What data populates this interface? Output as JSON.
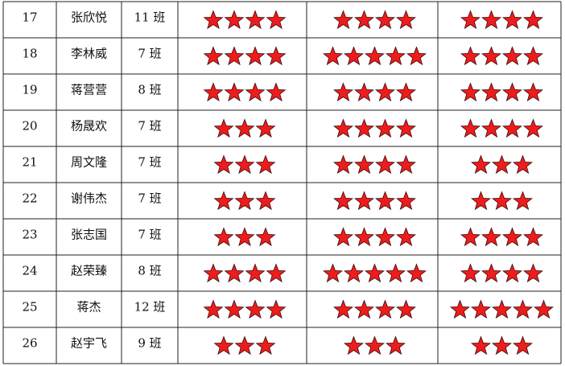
{
  "table": {
    "rows": [
      {
        "no": "17",
        "name": "张欣悦",
        "class": "11 班",
        "stars": [
          4,
          4,
          4
        ]
      },
      {
        "no": "18",
        "name": "李林威",
        "class": "7 班",
        "stars": [
          4,
          5,
          4
        ]
      },
      {
        "no": "19",
        "name": "蒋营营",
        "class": "8 班",
        "stars": [
          4,
          4,
          4
        ]
      },
      {
        "no": "20",
        "name": "杨晟欢",
        "class": "7 班",
        "stars": [
          3,
          4,
          4
        ]
      },
      {
        "no": "21",
        "name": "周文隆",
        "class": "7 班",
        "stars": [
          3,
          4,
          3
        ]
      },
      {
        "no": "22",
        "name": "谢伟杰",
        "class": "7 班",
        "stars": [
          3,
          4,
          3
        ]
      },
      {
        "no": "23",
        "name": "张志国",
        "class": "7 班",
        "stars": [
          3,
          4,
          4
        ]
      },
      {
        "no": "24",
        "name": "赵荣臻",
        "class": "8 班",
        "stars": [
          4,
          5,
          4
        ]
      },
      {
        "no": "25",
        "name": "蒋杰",
        "class": "12 班",
        "stars": [
          4,
          4,
          5
        ]
      },
      {
        "no": "26",
        "name": "赵宇飞",
        "class": "9 班",
        "stars": [
          3,
          3,
          3
        ]
      }
    ]
  }
}
